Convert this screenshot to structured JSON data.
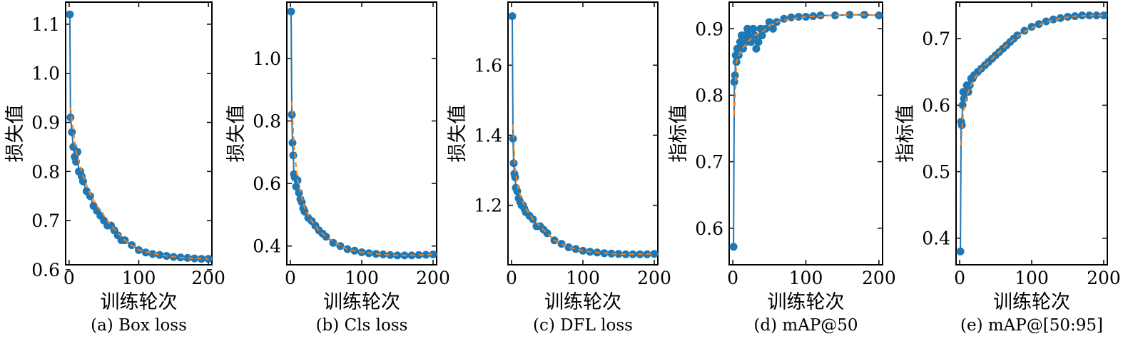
{
  "chart_data": [
    {
      "type": "line",
      "caption": "(a) Box loss",
      "xlabel": "训练轮次",
      "ylabel": "损失值",
      "xlim": [
        -5,
        205
      ],
      "ylim": [
        0.61,
        1.145
      ],
      "xticks": [
        0,
        100,
        200
      ],
      "yticks": [
        0.6,
        0.7,
        0.8,
        0.9,
        1.0,
        1.1
      ],
      "ytick_labels": [
        "0.6",
        "0.7",
        "0.8",
        "0.9",
        "1.0",
        "1.1"
      ],
      "series": [
        {
          "role": "measured",
          "x": [
            1,
            2,
            4,
            6,
            8,
            10,
            12,
            14,
            16,
            18,
            20,
            25,
            30,
            35,
            40,
            45,
            50,
            55,
            60,
            65,
            70,
            75,
            80,
            90,
            100,
            110,
            120,
            130,
            140,
            150,
            160,
            170,
            180,
            190,
            200
          ],
          "y": [
            1.12,
            0.91,
            0.88,
            0.85,
            0.83,
            0.82,
            0.84,
            0.8,
            0.8,
            0.79,
            0.78,
            0.76,
            0.75,
            0.73,
            0.72,
            0.71,
            0.7,
            0.69,
            0.69,
            0.68,
            0.67,
            0.66,
            0.66,
            0.65,
            0.64,
            0.635,
            0.632,
            0.63,
            0.628,
            0.626,
            0.625,
            0.624,
            0.623,
            0.622,
            0.622
          ],
          "color": "#1f77b4"
        },
        {
          "role": "smoothed",
          "x": [
            2,
            10,
            20,
            30,
            40,
            50,
            60,
            70,
            80,
            90,
            100,
            120,
            140,
            160,
            180,
            200
          ],
          "y": [
            0.93,
            0.84,
            0.79,
            0.755,
            0.73,
            0.71,
            0.69,
            0.675,
            0.66,
            0.65,
            0.64,
            0.633,
            0.628,
            0.625,
            0.623,
            0.622
          ],
          "color": "#ff7f0e"
        }
      ]
    },
    {
      "type": "line",
      "caption": "(b) Cls loss",
      "xlabel": "训练轮次",
      "ylabel": "损失值",
      "xlim": [
        -5,
        205
      ],
      "ylim": [
        0.34,
        1.18
      ],
      "xticks": [
        0,
        100,
        200
      ],
      "yticks": [
        0.4,
        0.6,
        0.8,
        1.0
      ],
      "ytick_labels": [
        "0.4",
        "0.6",
        "0.8",
        "1.0"
      ],
      "series": [
        {
          "role": "measured",
          "x": [
            1,
            2,
            3,
            4,
            5,
            6,
            8,
            10,
            12,
            14,
            16,
            18,
            20,
            25,
            30,
            35,
            40,
            45,
            50,
            60,
            70,
            80,
            90,
            100,
            110,
            120,
            130,
            140,
            150,
            160,
            170,
            180,
            190,
            200
          ],
          "y": [
            1.15,
            0.82,
            0.73,
            0.69,
            0.63,
            0.62,
            0.59,
            0.61,
            0.57,
            0.55,
            0.54,
            0.52,
            0.51,
            0.49,
            0.48,
            0.465,
            0.45,
            0.44,
            0.43,
            0.41,
            0.4,
            0.39,
            0.385,
            0.38,
            0.377,
            0.375,
            0.373,
            0.371,
            0.37,
            0.37,
            0.37,
            0.371,
            0.372,
            0.373
          ],
          "color": "#1f77b4"
        },
        {
          "role": "smoothed",
          "x": [
            2,
            5,
            10,
            20,
            30,
            40,
            50,
            60,
            70,
            80,
            90,
            100,
            120,
            140,
            160,
            180,
            200
          ],
          "y": [
            0.86,
            0.72,
            0.61,
            0.52,
            0.48,
            0.45,
            0.43,
            0.415,
            0.4,
            0.39,
            0.385,
            0.38,
            0.375,
            0.371,
            0.37,
            0.371,
            0.373
          ],
          "color": "#ff7f0e"
        }
      ]
    },
    {
      "type": "line",
      "caption": "(c) DFL loss",
      "xlabel": "训练轮次",
      "ylabel": "损失值",
      "xlim": [
        -5,
        205
      ],
      "ylim": [
        1.03,
        1.78
      ],
      "xticks": [
        0,
        100,
        200
      ],
      "yticks": [
        1.2,
        1.4,
        1.6
      ],
      "ytick_labels": [
        "1.2",
        "1.4",
        "1.6"
      ],
      "series": [
        {
          "role": "measured",
          "x": [
            1,
            2,
            3,
            4,
            5,
            6,
            8,
            10,
            12,
            14,
            16,
            18,
            20,
            25,
            30,
            35,
            40,
            45,
            50,
            60,
            70,
            80,
            90,
            100,
            110,
            120,
            130,
            140,
            150,
            160,
            170,
            180,
            190,
            200
          ],
          "y": [
            1.74,
            1.39,
            1.32,
            1.29,
            1.28,
            1.25,
            1.24,
            1.22,
            1.21,
            1.2,
            1.2,
            1.19,
            1.18,
            1.17,
            1.16,
            1.14,
            1.14,
            1.13,
            1.12,
            1.1,
            1.09,
            1.08,
            1.075,
            1.07,
            1.067,
            1.065,
            1.063,
            1.062,
            1.061,
            1.06,
            1.06,
            1.06,
            1.06,
            1.061
          ],
          "color": "#1f77b4"
        },
        {
          "role": "smoothed",
          "x": [
            2,
            5,
            10,
            20,
            30,
            40,
            50,
            60,
            70,
            80,
            90,
            100,
            120,
            140,
            160,
            180,
            200
          ],
          "y": [
            1.43,
            1.3,
            1.24,
            1.19,
            1.16,
            1.14,
            1.12,
            1.1,
            1.09,
            1.08,
            1.075,
            1.07,
            1.065,
            1.062,
            1.06,
            1.06,
            1.061
          ],
          "color": "#ff7f0e"
        }
      ]
    },
    {
      "type": "line",
      "caption": "(d) mAP@50",
      "xlabel": "训练轮次",
      "ylabel": "指标值",
      "xlim": [
        -5,
        205
      ],
      "ylim": [
        0.545,
        0.94
      ],
      "xticks": [
        0,
        100,
        200
      ],
      "yticks": [
        0.6,
        0.7,
        0.8,
        0.9
      ],
      "ytick_labels": [
        "0.6",
        "0.7",
        "0.8",
        "0.9"
      ],
      "series": [
        {
          "role": "measured",
          "x": [
            1,
            2,
            3,
            4,
            5,
            6,
            8,
            10,
            12,
            14,
            16,
            18,
            20,
            22,
            25,
            28,
            30,
            32,
            35,
            38,
            40,
            45,
            50,
            55,
            60,
            70,
            80,
            90,
            100,
            110,
            120,
            140,
            160,
            180,
            200
          ],
          "y": [
            0.572,
            0.82,
            0.83,
            0.86,
            0.85,
            0.87,
            0.86,
            0.88,
            0.89,
            0.87,
            0.89,
            0.88,
            0.9,
            0.89,
            0.88,
            0.9,
            0.89,
            0.87,
            0.88,
            0.9,
            0.89,
            0.9,
            0.91,
            0.9,
            0.91,
            0.915,
            0.917,
            0.918,
            0.918,
            0.919,
            0.92,
            0.92,
            0.921,
            0.921,
            0.92
          ],
          "color": "#1f77b4"
        },
        {
          "role": "smoothed",
          "x": [
            2,
            5,
            10,
            20,
            30,
            40,
            50,
            60,
            80,
            100,
            120,
            140,
            160,
            180,
            200
          ],
          "y": [
            0.77,
            0.85,
            0.865,
            0.88,
            0.89,
            0.895,
            0.905,
            0.91,
            0.915,
            0.918,
            0.919,
            0.92,
            0.921,
            0.921,
            0.92
          ],
          "color": "#ff7f0e"
        }
      ]
    },
    {
      "type": "line",
      "caption": "(e) mAP@[50:95]",
      "xlabel": "训练轮次",
      "ylabel": "指标值",
      "xlim": [
        -5,
        205
      ],
      "ylim": [
        0.36,
        0.755
      ],
      "xticks": [
        0,
        100,
        200
      ],
      "yticks": [
        0.4,
        0.5,
        0.6,
        0.7
      ],
      "ytick_labels": [
        "0.4",
        "0.5",
        "0.6",
        "0.7"
      ],
      "series": [
        {
          "role": "measured",
          "x": [
            1,
            2,
            3,
            4,
            5,
            6,
            8,
            10,
            12,
            14,
            16,
            18,
            20,
            25,
            30,
            35,
            40,
            45,
            50,
            55,
            60,
            65,
            70,
            75,
            80,
            90,
            100,
            110,
            120,
            130,
            140,
            150,
            160,
            170,
            180,
            190,
            200
          ],
          "y": [
            0.38,
            0.575,
            0.57,
            0.6,
            0.62,
            0.61,
            0.62,
            0.63,
            0.62,
            0.63,
            0.64,
            0.64,
            0.645,
            0.65,
            0.655,
            0.66,
            0.665,
            0.67,
            0.675,
            0.68,
            0.685,
            0.69,
            0.695,
            0.7,
            0.705,
            0.712,
            0.718,
            0.722,
            0.726,
            0.729,
            0.731,
            0.733,
            0.734,
            0.735,
            0.735,
            0.735,
            0.735
          ],
          "color": "#1f77b4"
        },
        {
          "role": "smoothed",
          "x": [
            2,
            5,
            10,
            20,
            30,
            40,
            50,
            60,
            70,
            80,
            90,
            100,
            120,
            140,
            160,
            180,
            200
          ],
          "y": [
            0.54,
            0.59,
            0.615,
            0.64,
            0.655,
            0.665,
            0.675,
            0.685,
            0.695,
            0.703,
            0.71,
            0.716,
            0.725,
            0.731,
            0.734,
            0.735,
            0.735
          ],
          "color": "#ff7f0e"
        }
      ]
    }
  ]
}
